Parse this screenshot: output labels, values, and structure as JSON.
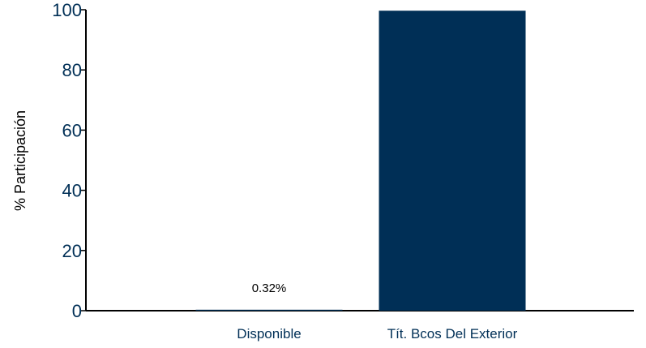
{
  "chart_data": {
    "type": "bar",
    "title": "",
    "xlabel": "",
    "ylabel": "% Participación",
    "categories": [
      "Disponible",
      "Tít. Bcos Del Exterior"
    ],
    "series": [
      {
        "values": [
          0.32,
          99.68
        ],
        "data_labels": [
          "0.32%",
          ""
        ]
      }
    ],
    "ylim": [
      0,
      100
    ],
    "yticks": [
      "0",
      "20",
      "40",
      "60",
      "80",
      "100"
    ],
    "grid": false,
    "legend": "none"
  },
  "colors": {
    "bar": "#002f56",
    "axis": "#000000",
    "tick_text": "#002f56",
    "label_text": "#002f56",
    "ylabel_text": "#000000",
    "data_label_text": "#000000"
  }
}
